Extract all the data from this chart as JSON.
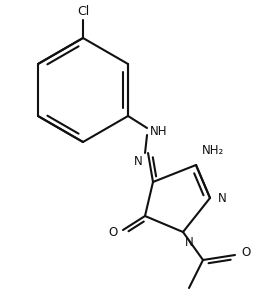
{
  "bg": "#ffffff",
  "lc": "#111111",
  "lw": 1.5,
  "fs": 8.5,
  "fig_w": 2.58,
  "fig_h": 3.06,
  "dpi": 100,
  "xlim": [
    0,
    258
  ],
  "ylim": [
    0,
    306
  ]
}
